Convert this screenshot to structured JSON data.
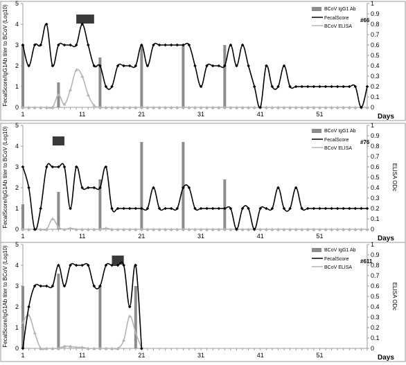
{
  "colors": {
    "bar": "#8c8c8c",
    "fecal_line": "#000000",
    "elisa_line": "#b4b4b4",
    "treatment_box": "#3a3a3a"
  },
  "chart_data": [
    {
      "type": "line",
      "id_label": "#66",
      "ylabel_left": "FecalScore/IgG1Ab titer to BCoV (Log10)",
      "ylabel_right": "",
      "xlabel": "Days",
      "x_ticks": [
        1,
        11,
        21,
        31,
        41,
        51
      ],
      "y_left_ticks": [
        0,
        1,
        2,
        3,
        4,
        5
      ],
      "y_right_ticks": [
        "0",
        "0.1",
        "0.2",
        "0.3",
        "0.4",
        "0.5",
        "0.6",
        "0.7",
        "0.8",
        "0.9",
        "1"
      ],
      "xlim": [
        1,
        59
      ],
      "ylim_left": [
        0,
        5
      ],
      "ylim_right": [
        0,
        1
      ],
      "treatment_days": [
        10,
        13
      ],
      "legend": {
        "bar": "BCoV IgG1 Ab",
        "fecal": "FecalScore",
        "elisa": "BCoV ELISA"
      },
      "legend_position": "top-right",
      "bars": [
        {
          "x": 1,
          "y": 3.0
        },
        {
          "x": 7,
          "y": 1.2
        },
        {
          "x": 14,
          "y": 2.4
        },
        {
          "x": 21,
          "y": 3.0
        },
        {
          "x": 28,
          "y": 3.0
        },
        {
          "x": 35,
          "y": 3.0
        }
      ],
      "fecal": [
        3,
        2,
        3,
        3,
        4,
        2,
        3,
        3,
        3,
        3,
        4,
        3,
        2,
        2,
        1,
        1,
        2,
        2,
        2,
        2,
        3,
        2,
        3,
        3,
        3,
        3,
        3,
        3,
        3,
        2,
        1,
        2,
        2,
        2,
        2,
        3,
        2,
        3,
        2,
        1,
        0,
        2,
        1,
        1,
        2,
        1,
        1,
        1,
        1,
        1,
        1,
        1,
        1,
        1,
        1,
        1,
        1,
        0,
        1
      ],
      "elisa": [
        0,
        0,
        0,
        0,
        0,
        0,
        0.12,
        0.03,
        0.17,
        0.36,
        0.3,
        0.12,
        0.02,
        0,
        0,
        0,
        0,
        0,
        0,
        0,
        0,
        0,
        0,
        0,
        0,
        0,
        0,
        0,
        0,
        0,
        0,
        0,
        0,
        0,
        0,
        0,
        0,
        0,
        0,
        0,
        0,
        0,
        0,
        0,
        0,
        0,
        0,
        0,
        0,
        0,
        0,
        0,
        0,
        0,
        0,
        0,
        0,
        0,
        0
      ]
    },
    {
      "type": "line",
      "id_label": "#76",
      "ylabel_left": "FecalScore/IgG1Ab titer to BCoV (Log10)",
      "ylabel_right": "ELISA ODc",
      "xlabel": "Days",
      "x_ticks": [
        1,
        11,
        21,
        31,
        41,
        51
      ],
      "y_left_ticks": [
        0,
        1,
        2,
        3,
        4,
        5
      ],
      "y_right_ticks": [
        "0",
        "0.1",
        "0.2",
        "0.3",
        "0.4",
        "0.5",
        "0.6",
        "0.7",
        "0.8",
        "0.9",
        "1"
      ],
      "xlim": [
        1,
        59
      ],
      "ylim_left": [
        0,
        5
      ],
      "ylim_right": [
        0,
        1
      ],
      "treatment_days": [
        6,
        8
      ],
      "legend": {
        "bar": "BCoV IgG1 Ab",
        "fecal": "FecalScore",
        "elisa": "BCoV ELISA"
      },
      "legend_position": "top-right",
      "bars": [
        {
          "x": 1,
          "y": 1.2
        },
        {
          "x": 7,
          "y": 1.8
        },
        {
          "x": 14,
          "y": 2.4
        },
        {
          "x": 21,
          "y": 4.2
        },
        {
          "x": 28,
          "y": 4.2
        },
        {
          "x": 35,
          "y": 2.4
        }
      ],
      "fecal": [
        3,
        2,
        0,
        1,
        3,
        3,
        3,
        3,
        1,
        3,
        2,
        2,
        2,
        2,
        3,
        1,
        1,
        1,
        1,
        1,
        1,
        1,
        2,
        1,
        1,
        1,
        1,
        2,
        2,
        1,
        1,
        1,
        1,
        1,
        1,
        1,
        0,
        1,
        1,
        0,
        1,
        1,
        1,
        2,
        1,
        1,
        2,
        1,
        1,
        1,
        1,
        1,
        1,
        1,
        1,
        1,
        1,
        1,
        1
      ],
      "elisa": [
        0,
        0,
        0,
        0,
        0,
        0.1,
        0.02,
        0,
        0.01,
        0,
        0,
        0,
        0,
        0,
        0.01,
        0,
        0,
        0,
        0,
        0,
        0,
        0,
        0,
        0,
        0,
        0,
        0,
        0,
        0,
        0,
        0,
        0,
        0,
        0,
        0,
        0,
        0,
        0,
        0,
        0,
        0,
        0,
        0,
        0,
        0,
        0,
        0,
        0,
        0,
        0,
        0,
        0,
        0,
        0,
        0,
        0,
        0,
        0,
        0
      ]
    },
    {
      "type": "line",
      "id_label": "#611",
      "ylabel_left": "FecalScore/IgG1Ab titer to BCoV (Log10)",
      "ylabel_right": "ELISA ODc",
      "xlabel": "Days",
      "x_ticks": [
        1,
        11,
        21,
        31,
        41,
        51
      ],
      "y_left_ticks": [
        0,
        1,
        2,
        3,
        4,
        5
      ],
      "y_right_ticks": [
        "0",
        "0.1",
        "0.2",
        "0.3",
        "0.4",
        "0.5",
        "0.6",
        "0.7",
        "0.8",
        "0.9",
        "1"
      ],
      "xlim": [
        1,
        59
      ],
      "ylim_left": [
        0,
        5
      ],
      "ylim_right": [
        0,
        1
      ],
      "treatment_days": [
        16,
        18
      ],
      "legend": {
        "bar": "BCoV IgG1 Ab",
        "fecal": "FecalScore",
        "elisa": "BCoV ELISA"
      },
      "legend_position": "top-right",
      "bars": [
        {
          "x": 1,
          "y": 3.0
        },
        {
          "x": 7,
          "y": 3.6
        },
        {
          "x": 14,
          "y": 3.0
        },
        {
          "x": 20,
          "y": 3.0
        }
      ],
      "fecal": [
        0,
        2,
        3,
        3,
        3,
        3,
        4,
        3,
        4,
        4,
        4,
        4,
        3,
        3,
        4,
        4,
        4,
        4,
        2,
        4,
        0
      ],
      "elisa": [
        0.25,
        0.32,
        0.15,
        0,
        0,
        0,
        0,
        0.02,
        0.02,
        0.01,
        0.01,
        0,
        0,
        0,
        0,
        0,
        0,
        0.08,
        0.31,
        0.15,
        0
      ]
    }
  ]
}
